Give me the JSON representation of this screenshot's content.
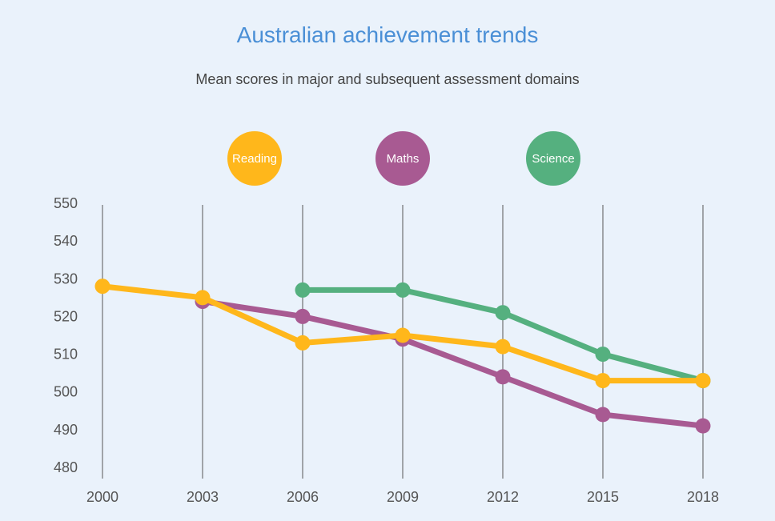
{
  "chart_data": {
    "type": "line",
    "title": "Australian achievement trends",
    "subtitle": "Mean scores in major and subsequent assessment domains",
    "x": [
      "2000",
      "2003",
      "2006",
      "2009",
      "2012",
      "2015",
      "2018"
    ],
    "yticks": [
      "550",
      "540",
      "530",
      "520",
      "510",
      "500",
      "490",
      "480"
    ],
    "ylim": [
      480,
      550
    ],
    "grid": "vertical",
    "legend_position": "top",
    "series": [
      {
        "name": "Reading",
        "color": "#ffb71b",
        "values": [
          528,
          525,
          513,
          515,
          512,
          503,
          503
        ]
      },
      {
        "name": "Maths",
        "color": "#a85a92",
        "values": [
          null,
          524,
          520,
          514,
          504,
          494,
          491
        ]
      },
      {
        "name": "Science",
        "color": "#55b07f",
        "values": [
          null,
          null,
          527,
          527,
          521,
          510,
          503
        ]
      }
    ]
  }
}
